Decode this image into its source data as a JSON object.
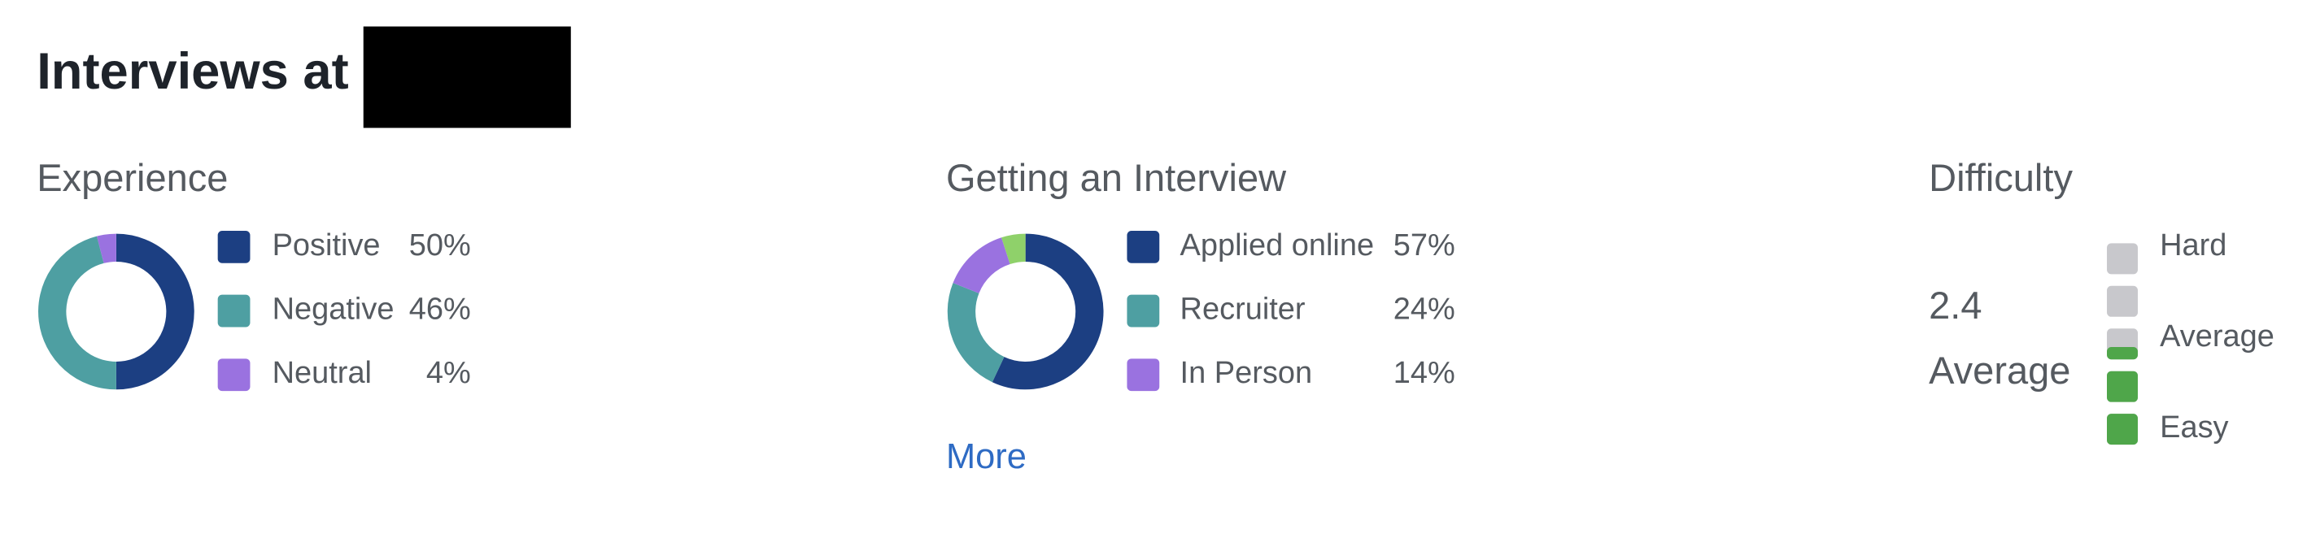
{
  "header": {
    "title": "Interviews at"
  },
  "experience": {
    "heading": "Experience",
    "segments": [
      {
        "name": "Positive",
        "value": 50,
        "label": "50%",
        "color": "#1c3f82"
      },
      {
        "name": "Negative",
        "value": 46,
        "label": "46%",
        "color": "#4e9fa2"
      },
      {
        "name": "Neutral",
        "value": 4,
        "label": "4%",
        "color": "#9a72e0"
      }
    ]
  },
  "getting_interview": {
    "heading": "Getting an Interview",
    "segments": [
      {
        "name": "Applied online",
        "value": 57,
        "label": "57%",
        "color": "#1c3f82"
      },
      {
        "name": "Recruiter",
        "value": 24,
        "label": "24%",
        "color": "#4e9fa2"
      },
      {
        "name": "In Person",
        "value": 14,
        "label": "14%",
        "color": "#9a72e0"
      }
    ],
    "unlabeled_segment": {
      "value": 5,
      "color": "#8fd16a"
    },
    "more_link": "More"
  },
  "difficulty": {
    "heading": "Difficulty",
    "rating": 2.4,
    "rating_label": "Average",
    "scale_max": 5,
    "scale_labels": [
      "Hard",
      "Average",
      "Easy"
    ],
    "filled_color": "#4fa64a",
    "empty_color": "#c8c8cc"
  }
}
